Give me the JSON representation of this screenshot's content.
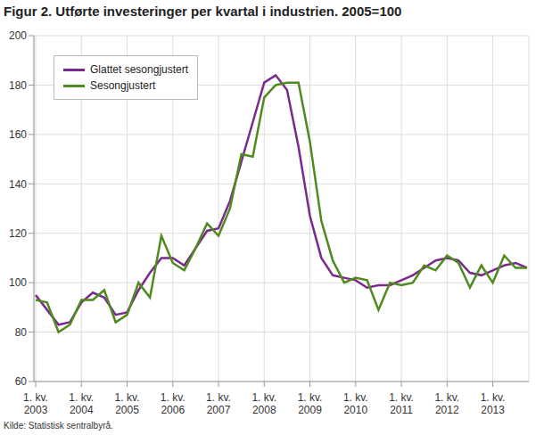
{
  "chart_data": {
    "type": "line",
    "title": "Figur 2. Utførte investeringer per kvartal i industrien. 2005=100",
    "source": "Kilde: Statistisk sentralbyrå.",
    "categories": [
      "1. kv. 2003",
      null,
      null,
      null,
      "1. kv. 2004",
      null,
      null,
      null,
      "1. kv. 2005",
      null,
      null,
      null,
      "1. kv. 2006",
      null,
      null,
      null,
      "1. kv. 2007",
      null,
      null,
      null,
      "1. kv. 2008",
      null,
      null,
      null,
      "1. kv. 2009",
      null,
      null,
      null,
      "1. kv. 2010",
      null,
      null,
      null,
      "1. kv. 2011",
      null,
      null,
      null,
      "1. kv. 2012",
      null,
      null,
      null,
      "1. kv. 2013",
      null,
      null,
      null
    ],
    "series": [
      {
        "name": "Glattet sesongjustert",
        "color": "#7a2a8c",
        "values": [
          95,
          89,
          83,
          84,
          92,
          96,
          94,
          87,
          88,
          97,
          104,
          110,
          110,
          107,
          114,
          121,
          122,
          133,
          149,
          165,
          181,
          184,
          178,
          155,
          127,
          110,
          103,
          102,
          101,
          98,
          99,
          99,
          101,
          103,
          106,
          109,
          110,
          109,
          104,
          103,
          105,
          107,
          108,
          106
        ]
      },
      {
        "name": "Sesongjustert",
        "color": "#4f8a1e",
        "values": [
          93,
          92,
          80,
          83,
          93,
          93,
          97,
          84,
          87,
          100,
          94,
          119,
          108,
          105,
          114,
          124,
          119,
          130,
          152,
          151,
          175,
          180,
          181,
          181,
          157,
          125,
          109,
          100,
          102,
          101,
          89,
          100,
          99,
          100,
          107,
          105,
          111,
          108,
          98,
          107,
          100,
          111,
          106,
          106
        ]
      }
    ],
    "ylim": [
      60,
      200
    ],
    "yticks": [
      60,
      80,
      100,
      120,
      140,
      160,
      180,
      200
    ],
    "grid": true,
    "legend": "top-left"
  }
}
